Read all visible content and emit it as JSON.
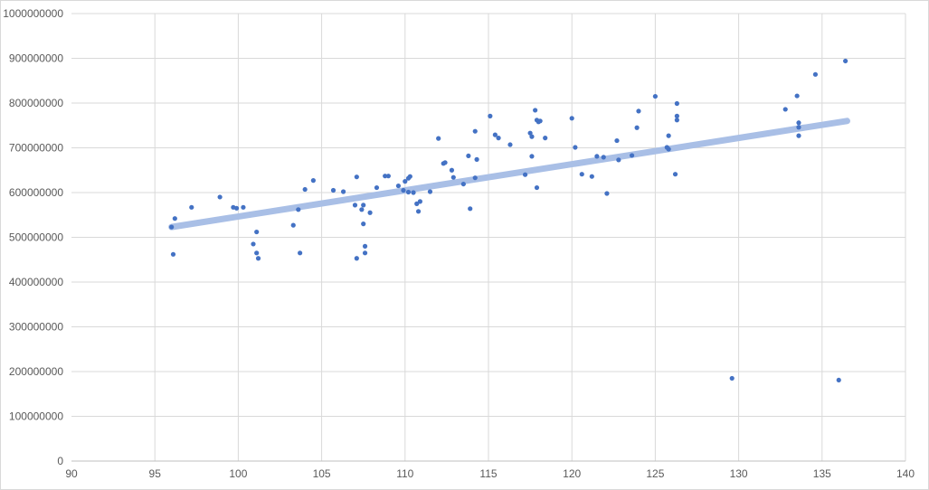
{
  "chart_data": {
    "type": "scatter",
    "title": "",
    "xlabel": "",
    "ylabel": "",
    "xlim": [
      90,
      140
    ],
    "ylim": [
      0,
      1000000000
    ],
    "x_ticks": [
      90,
      95,
      100,
      105,
      110,
      115,
      120,
      125,
      130,
      135,
      140
    ],
    "y_ticks": [
      0,
      100000000,
      200000000,
      300000000,
      400000000,
      500000000,
      600000000,
      700000000,
      800000000,
      900000000,
      1000000000
    ],
    "x_tick_labels": [
      "90",
      "95",
      "100",
      "105",
      "110",
      "115",
      "120",
      "125",
      "130",
      "135",
      "140"
    ],
    "y_tick_labels": [
      "0",
      "100000000",
      "200000000",
      "300000000",
      "400000000",
      "500000000",
      "600000000",
      "700000000",
      "800000000",
      "900000000",
      "1000000000"
    ],
    "grid": true,
    "legend": "none",
    "marker_color": "#4472C4",
    "trendline_color": "#A9BFE6",
    "trendline": {
      "type": "linear",
      "x": [
        96,
        136.5
      ],
      "y": [
        523000000,
        760000000
      ]
    },
    "points": [
      [
        96.0,
        523000000
      ],
      [
        96.1,
        462000000
      ],
      [
        96.2,
        542000000
      ],
      [
        97.2,
        567000000
      ],
      [
        98.9,
        590000000
      ],
      [
        99.7,
        567000000
      ],
      [
        99.9,
        565000000
      ],
      [
        100.3,
        567000000
      ],
      [
        100.9,
        485000000
      ],
      [
        101.1,
        512000000
      ],
      [
        101.1,
        465000000
      ],
      [
        101.2,
        453000000
      ],
      [
        103.3,
        527000000
      ],
      [
        103.6,
        562000000
      ],
      [
        103.7,
        465000000
      ],
      [
        104.0,
        607000000
      ],
      [
        104.5,
        627000000
      ],
      [
        105.7,
        605000000
      ],
      [
        106.3,
        602000000
      ],
      [
        107.0,
        572000000
      ],
      [
        107.1,
        635000000
      ],
      [
        107.1,
        453000000
      ],
      [
        107.4,
        562000000
      ],
      [
        107.5,
        530000000
      ],
      [
        107.5,
        572000000
      ],
      [
        107.6,
        480000000
      ],
      [
        107.6,
        465000000
      ],
      [
        107.9,
        555000000
      ],
      [
        108.3,
        611000000
      ],
      [
        108.8,
        637000000
      ],
      [
        109.0,
        637000000
      ],
      [
        109.6,
        615000000
      ],
      [
        109.9,
        605000000
      ],
      [
        110.0,
        625000000
      ],
      [
        110.2,
        632000000
      ],
      [
        110.3,
        636000000
      ],
      [
        110.2,
        601000000
      ],
      [
        110.5,
        600000000
      ],
      [
        110.7,
        575000000
      ],
      [
        110.8,
        558000000
      ],
      [
        110.9,
        580000000
      ],
      [
        111.5,
        602000000
      ],
      [
        112.0,
        721000000
      ],
      [
        112.3,
        665000000
      ],
      [
        112.4,
        667000000
      ],
      [
        112.8,
        650000000
      ],
      [
        112.9,
        634000000
      ],
      [
        113.5,
        619000000
      ],
      [
        113.8,
        682000000
      ],
      [
        113.9,
        564000000
      ],
      [
        114.2,
        737000000
      ],
      [
        114.2,
        633000000
      ],
      [
        114.3,
        674000000
      ],
      [
        115.1,
        771000000
      ],
      [
        115.4,
        729000000
      ],
      [
        115.6,
        722000000
      ],
      [
        116.3,
        707000000
      ],
      [
        117.2,
        640000000
      ],
      [
        117.5,
        733000000
      ],
      [
        117.6,
        681000000
      ],
      [
        117.6,
        725000000
      ],
      [
        117.8,
        784000000
      ],
      [
        117.9,
        762000000
      ],
      [
        118.0,
        758000000
      ],
      [
        118.1,
        760000000
      ],
      [
        117.9,
        611000000
      ],
      [
        118.4,
        722000000
      ],
      [
        120.0,
        766000000
      ],
      [
        120.2,
        701000000
      ],
      [
        120.6,
        641000000
      ],
      [
        121.2,
        636000000
      ],
      [
        121.5,
        681000000
      ],
      [
        121.9,
        679000000
      ],
      [
        122.1,
        598000000
      ],
      [
        122.7,
        716000000
      ],
      [
        122.8,
        673000000
      ],
      [
        123.6,
        683000000
      ],
      [
        123.9,
        745000000
      ],
      [
        124.0,
        782000000
      ],
      [
        125.0,
        815000000
      ],
      [
        125.7,
        701000000
      ],
      [
        125.8,
        697000000
      ],
      [
        125.8,
        727000000
      ],
      [
        126.2,
        641000000
      ],
      [
        126.3,
        799000000
      ],
      [
        126.3,
        771000000
      ],
      [
        126.3,
        762000000
      ],
      [
        129.6,
        185000000
      ],
      [
        132.8,
        786000000
      ],
      [
        133.5,
        816000000
      ],
      [
        133.6,
        756000000
      ],
      [
        133.6,
        746000000
      ],
      [
        133.6,
        727000000
      ],
      [
        134.6,
        864000000
      ],
      [
        136.0,
        181000000
      ],
      [
        136.4,
        894000000
      ]
    ]
  }
}
